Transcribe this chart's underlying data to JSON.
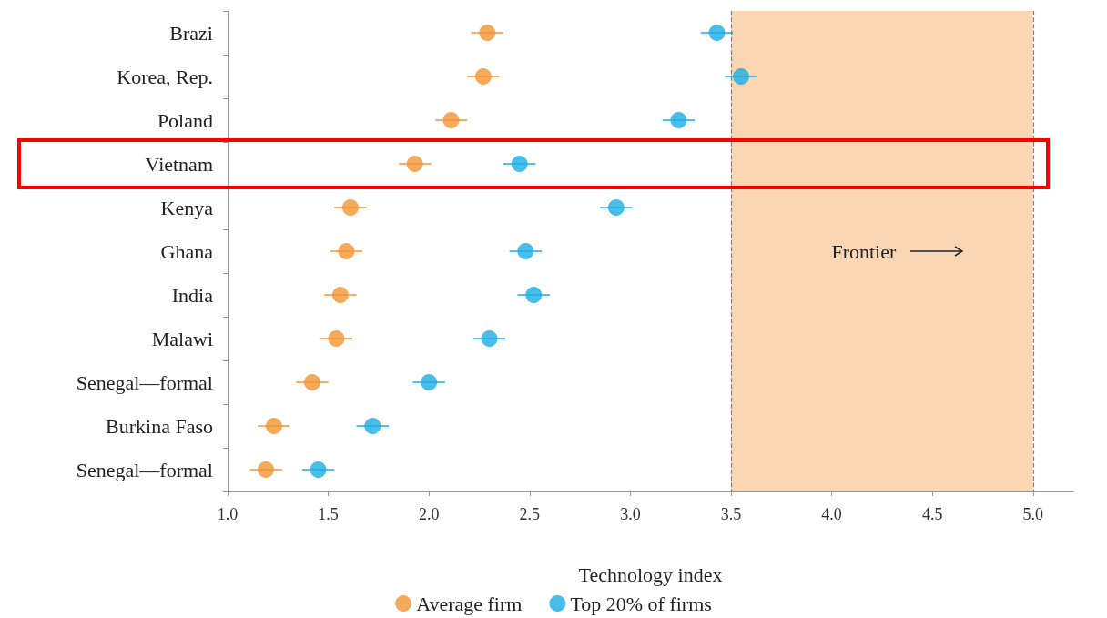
{
  "chart_data": {
    "type": "scatter",
    "xlabel": "Technology index",
    "categories": [
      "Brazi",
      "Korea, Rep.",
      "Poland",
      "Vietnam",
      "Kenya",
      "Ghana",
      "India",
      "Malawi",
      "Senegal—formal",
      "Burkina Faso",
      "Senegal—formal"
    ],
    "series": [
      {
        "name": "Average firm",
        "color": "#f39432",
        "values": [
          2.29,
          2.27,
          2.11,
          1.93,
          1.61,
          1.59,
          1.56,
          1.54,
          1.42,
          1.23,
          1.19
        ],
        "errors": [
          0.08,
          0.08,
          0.08,
          0.08,
          0.08,
          0.08,
          0.08,
          0.08,
          0.08,
          0.08,
          0.08
        ]
      },
      {
        "name": "Top 20% of firms",
        "color": "#1cade4",
        "values": [
          3.43,
          3.55,
          3.24,
          2.45,
          2.93,
          2.48,
          2.52,
          2.3,
          2.0,
          1.72,
          1.45
        ],
        "errors": [
          0.08,
          0.08,
          0.08,
          0.08,
          0.08,
          0.08,
          0.08,
          0.08,
          0.08,
          0.08,
          0.08
        ]
      }
    ],
    "orientation": "horizontal",
    "xlim": [
      1.0,
      5.2
    ],
    "xticks": [
      {
        "value": 1,
        "label": "1.0"
      },
      1.5,
      {
        "value": 2,
        "label": "2.0"
      },
      2.5,
      {
        "value": 3,
        "label": "3.0"
      },
      3.5,
      {
        "value": 4,
        "label": "4.0"
      },
      4.5,
      {
        "value": 5,
        "label": "5.0"
      }
    ],
    "ref_lines": [
      {
        "axis": "x",
        "value": 3.5,
        "color": "#808080",
        "line_style": "dashed"
      },
      {
        "axis": "x",
        "value": 5.0,
        "color": "#808080",
        "line_style": "dashed"
      }
    ],
    "bands": [
      {
        "axis": "x",
        "from": 3.5,
        "to": 5.0,
        "label": "Frontier",
        "color": "#fad6b5"
      }
    ],
    "marker": "circle",
    "grid": false,
    "legend": "bottom"
  }
}
